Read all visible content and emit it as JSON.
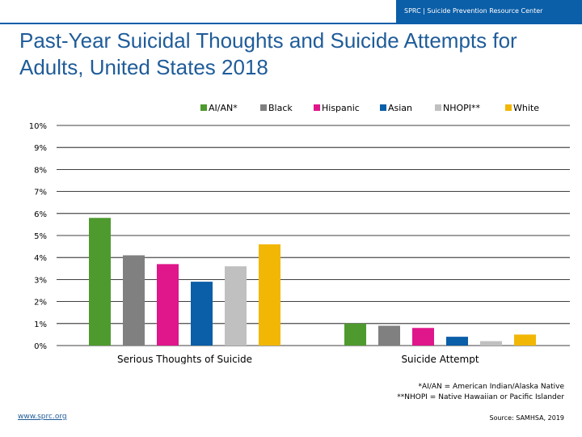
{
  "header": {
    "org_text": "SPRC  |  Suicide Prevention Resource Center"
  },
  "title": "Past-Year Suicidal Thoughts and Suicide Attempts for Adults, United States 2018",
  "chart_data": {
    "type": "bar",
    "title": "",
    "xlabel": "",
    "ylabel": "",
    "ylim": [
      0,
      10
    ],
    "yticks": [
      "0%",
      "1%",
      "2%",
      "3%",
      "4%",
      "5%",
      "6%",
      "7%",
      "8%",
      "9%",
      "10%"
    ],
    "grid": true,
    "legend_position": "top",
    "categories": [
      "Serious Thoughts of Suicide",
      "Suicide Attempt"
    ],
    "series": [
      {
        "name": "AI/AN*",
        "color": "#4e9a2e",
        "values": [
          5.8,
          1.0
        ]
      },
      {
        "name": "Black",
        "color": "#808080",
        "values": [
          4.1,
          0.9
        ]
      },
      {
        "name": "Hispanic",
        "color": "#e0168b",
        "values": [
          3.7,
          0.8
        ]
      },
      {
        "name": "Asian",
        "color": "#0b5ea8",
        "values": [
          2.9,
          0.4
        ]
      },
      {
        "name": "NHOPI**",
        "color": "#c0c0c0",
        "values": [
          3.6,
          0.2
        ]
      },
      {
        "name": "White",
        "color": "#f2b705",
        "values": [
          4.6,
          0.5
        ]
      }
    ]
  },
  "footnotes": {
    "line1": "*AI/AN = American Indian/Alaska Native",
    "line2": "**NHOPI = Native Hawaiian or Pacific Islander"
  },
  "footer": {
    "url": "www.sprc.org",
    "source": "Source: SAMHSA, 2019"
  }
}
